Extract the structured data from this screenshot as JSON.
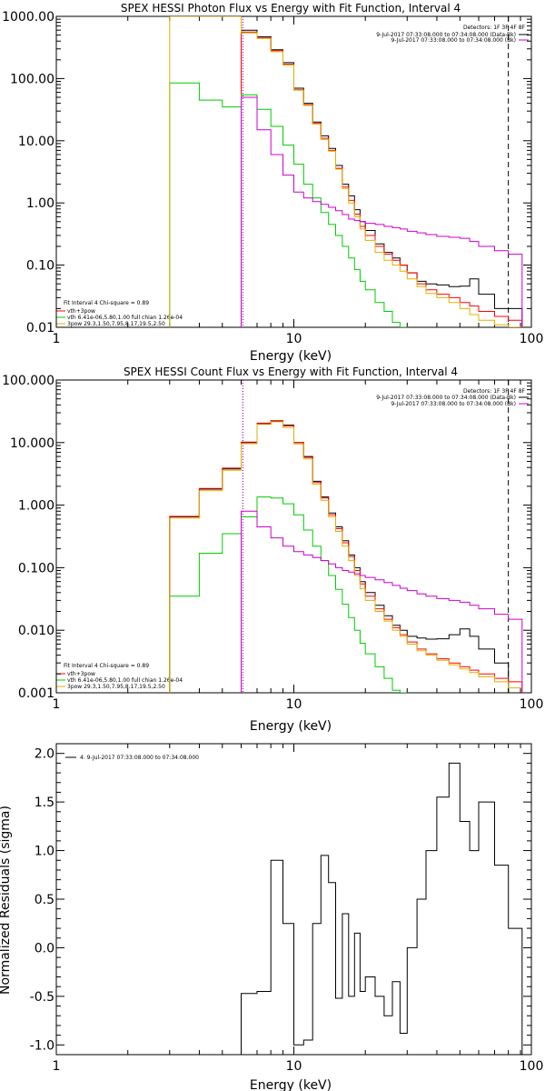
{
  "colors": {
    "data": "#000000",
    "background": "#ff0000",
    "total": "#ff8000",
    "vth": "#00cc00",
    "bpow": "#e0b000",
    "bk": "#cc00cc",
    "frame": "#000000"
  },
  "chart_data": [
    {
      "type": "line",
      "title": "SPEX HESSI Photon Flux vs Energy with Fit Function, Interval 4",
      "xlabel": "Energy (keV)",
      "ylabel": "",
      "xscale": "log",
      "yscale": "log",
      "xlim": [
        1,
        100
      ],
      "ylim": [
        0.01,
        1000
      ],
      "xticks": [
        {
          "v": 1,
          "label": "1"
        },
        {
          "v": 10,
          "label": "10"
        },
        {
          "v": 100,
          "label": "100"
        }
      ],
      "yticks": [
        {
          "v": 1000,
          "label": "1000.00"
        },
        {
          "v": 100,
          "label": "100.00"
        },
        {
          "v": 10,
          "label": "10.00"
        },
        {
          "v": 1,
          "label": "1.00"
        },
        {
          "v": 0.1,
          "label": "0.10"
        },
        {
          "v": 0.01,
          "label": "0.01"
        }
      ],
      "header": [
        "Detectors: 1F 3F 4F 8F",
        "9-Jul-2017 07:33:08.000 to 07:34:08.000 (Data-Bk)",
        "9-Jul-2017 07:33:08.000 to 07:34:08.000 (Bk)"
      ],
      "legend": [
        "Fit Interval  4   Chi-square = 0.89",
        "vth+3pow",
        "vth 6.41e-06,5.80,1.00  full chian 1.26e-04",
        "3pow 29.3,1.50,7.95,8.17,19.5,2.50"
      ],
      "vlines": [
        {
          "x": 6.1,
          "style": "dotted",
          "color": "#000000"
        },
        {
          "x": 6.1,
          "style": "dotted",
          "color": "#cc00cc"
        },
        {
          "x": 80,
          "style": "dashed",
          "color": "#000000"
        }
      ],
      "series": [
        {
          "name": "Data-Bk",
          "color": "#000000",
          "x": [
            6,
            7,
            8,
            9,
            10,
            11,
            12,
            13,
            14,
            15,
            16,
            17,
            18,
            19,
            20,
            22,
            24,
            26,
            28,
            30,
            33,
            36,
            40,
            45,
            50,
            55,
            60,
            70,
            80
          ],
          "y": [
            600,
            470,
            290,
            180,
            70,
            40,
            20,
            12,
            7.5,
            4,
            2,
            1.3,
            0.78,
            0.5,
            0.36,
            0.22,
            0.16,
            0.13,
            0.1,
            0.075,
            0.055,
            0.05,
            0.048,
            0.045,
            0.046,
            0.06,
            0.034,
            0.02,
            0.02
          ]
        },
        {
          "name": "vth+3pow",
          "color": "#ff0000",
          "x": [
            6,
            7,
            8,
            9,
            10,
            11,
            12,
            13,
            14,
            15,
            16,
            17,
            18,
            19,
            20,
            22,
            24,
            26,
            28,
            30,
            33,
            36,
            40,
            45,
            50,
            55,
            60,
            70,
            80
          ],
          "y": [
            560,
            450,
            280,
            170,
            66,
            38,
            19,
            11,
            7,
            3.6,
            1.8,
            1.1,
            0.66,
            0.42,
            0.3,
            0.2,
            0.15,
            0.12,
            0.1,
            0.075,
            0.05,
            0.04,
            0.034,
            0.03,
            0.025,
            0.022,
            0.018,
            0.015,
            0.013
          ]
        },
        {
          "name": "vth",
          "color": "#00cc00",
          "x": [
            3,
            4,
            5,
            6,
            7,
            8,
            9,
            10,
            11,
            12,
            13,
            14,
            15,
            16,
            17,
            18,
            19,
            20,
            22,
            24,
            26,
            28
          ],
          "y": [
            85,
            45,
            35,
            55,
            32,
            17,
            8.5,
            4.2,
            2,
            1.2,
            0.7,
            0.45,
            0.3,
            0.2,
            0.13,
            0.085,
            0.055,
            0.04,
            0.025,
            0.018,
            0.012,
            0.01
          ]
        },
        {
          "name": "3pow",
          "color": "#e0b000",
          "x": [
            3,
            4,
            5,
            6,
            7,
            8,
            9,
            10,
            11,
            12,
            13,
            14,
            15,
            16,
            17,
            18,
            19,
            20,
            22,
            24,
            26,
            28,
            30,
            33,
            36,
            40,
            45,
            50,
            55,
            60,
            70,
            80
          ],
          "y": [
            1000,
            1000,
            1000,
            540,
            440,
            270,
            165,
            65,
            37,
            18.5,
            10.5,
            6.8,
            3.5,
            1.7,
            1.0,
            0.6,
            0.38,
            0.25,
            0.16,
            0.12,
            0.1,
            0.08,
            0.06,
            0.045,
            0.035,
            0.03,
            0.025,
            0.02,
            0.016,
            0.013,
            0.011,
            0.01
          ]
        },
        {
          "name": "Bk",
          "color": "#cc00cc",
          "x": [
            6,
            7,
            8,
            9,
            10,
            11,
            12,
            13,
            14,
            15,
            16,
            17,
            18,
            19,
            20,
            22,
            24,
            26,
            28,
            30,
            33,
            36,
            40,
            45,
            50,
            55,
            60,
            70,
            80
          ],
          "y": [
            50,
            15,
            6,
            2.8,
            1.5,
            1.2,
            1.05,
            0.95,
            0.85,
            0.75,
            0.65,
            0.55,
            0.52,
            0.5,
            0.47,
            0.45,
            0.42,
            0.4,
            0.38,
            0.35,
            0.33,
            0.31,
            0.29,
            0.28,
            0.27,
            0.24,
            0.2,
            0.17,
            0.15
          ]
        }
      ]
    },
    {
      "type": "line",
      "title": "SPEX HESSI Count Flux vs Energy with Fit Function, Interval 4",
      "xlabel": "Energy (keV)",
      "ylabel": "",
      "xscale": "log",
      "yscale": "log",
      "xlim": [
        1,
        100
      ],
      "ylim": [
        0.001,
        100
      ],
      "xticks": [
        {
          "v": 1,
          "label": "1"
        },
        {
          "v": 10,
          "label": "10"
        },
        {
          "v": 100,
          "label": "100"
        }
      ],
      "yticks": [
        {
          "v": 100,
          "label": "100.000"
        },
        {
          "v": 10,
          "label": "10.000"
        },
        {
          "v": 1,
          "label": "1.000"
        },
        {
          "v": 0.1,
          "label": "0.100"
        },
        {
          "v": 0.01,
          "label": "0.010"
        },
        {
          "v": 0.001,
          "label": "0.001"
        }
      ],
      "header": [
        "Detectors: 1F 3F 4F 8F",
        "9-Jul-2017 07:33:08.000 to 07:34:08.000 (Data-Bk)",
        "9-Jul-2017 07:33:08.000 to 07:34:08.000 (Bk)"
      ],
      "legend": [
        "Fit Interval  4   Chi-square = 0.89",
        "vth+3pow",
        "vth 6.41e-06,5.80,1.00  full chian 1.26e-04",
        "3pow 29.3,1.50,7.95,8.17,19.5,2.50"
      ],
      "vlines": [
        {
          "x": 6.1,
          "style": "dotted",
          "color": "#000000"
        },
        {
          "x": 6.1,
          "style": "dotted",
          "color": "#cc00cc"
        },
        {
          "x": 80,
          "style": "dashed",
          "color": "#000000"
        }
      ],
      "series": [
        {
          "name": "Data-Bk",
          "color": "#000000",
          "x": [
            3,
            4,
            5,
            6,
            7,
            8,
            9,
            10,
            11,
            12,
            13,
            14,
            15,
            16,
            17,
            18,
            19,
            20,
            22,
            24,
            26,
            28,
            30,
            33,
            36,
            40,
            45,
            50,
            55,
            60,
            70,
            80
          ],
          "y": [
            0.65,
            1.8,
            3.8,
            10,
            20,
            22,
            19,
            10,
            6,
            2.4,
            1.35,
            0.75,
            0.45,
            0.27,
            0.16,
            0.1,
            0.06,
            0.04,
            0.025,
            0.017,
            0.012,
            0.01,
            0.008,
            0.0075,
            0.0072,
            0.0073,
            0.0085,
            0.0105,
            0.008,
            0.005,
            0.003,
            0.001
          ]
        },
        {
          "name": "vth+3pow",
          "color": "#ff0000",
          "x": [
            3,
            4,
            5,
            6,
            7,
            8,
            9,
            10,
            11,
            12,
            13,
            14,
            15,
            16,
            17,
            18,
            19,
            20,
            22,
            24,
            26,
            28,
            30,
            33,
            36,
            40,
            45,
            50,
            55,
            60,
            70,
            80
          ],
          "y": [
            0.66,
            1.85,
            3.9,
            10.2,
            20.5,
            22.5,
            18.5,
            10,
            5.8,
            2.3,
            1.3,
            0.7,
            0.42,
            0.25,
            0.15,
            0.09,
            0.055,
            0.035,
            0.022,
            0.015,
            0.011,
            0.0085,
            0.0065,
            0.005,
            0.0042,
            0.0035,
            0.003,
            0.0026,
            0.0023,
            0.002,
            0.0017,
            0.0015
          ]
        },
        {
          "name": "vth",
          "color": "#00cc00",
          "x": [
            3,
            4,
            5,
            6,
            7,
            8,
            9,
            10,
            11,
            12,
            13,
            14,
            15,
            16,
            17,
            18,
            19,
            20,
            22,
            24,
            26,
            28
          ],
          "y": [
            0.035,
            0.17,
            0.35,
            0.65,
            1.35,
            1.3,
            1.05,
            0.7,
            0.4,
            0.22,
            0.13,
            0.075,
            0.045,
            0.026,
            0.016,
            0.01,
            0.0062,
            0.0042,
            0.0026,
            0.0017,
            0.0011,
            0.001
          ]
        },
        {
          "name": "3pow",
          "color": "#e0b000",
          "x": [
            3,
            4,
            5,
            6,
            7,
            8,
            9,
            10,
            11,
            12,
            13,
            14,
            15,
            16,
            17,
            18,
            19,
            20,
            22,
            24,
            26,
            28,
            30,
            33,
            36,
            40,
            45,
            50,
            55,
            60,
            70,
            80
          ],
          "y": [
            0.62,
            1.7,
            3.6,
            9.6,
            19.5,
            21.5,
            17.5,
            9.5,
            5.5,
            2.15,
            1.2,
            0.65,
            0.38,
            0.22,
            0.13,
            0.075,
            0.046,
            0.03,
            0.02,
            0.014,
            0.01,
            0.008,
            0.006,
            0.0047,
            0.004,
            0.0033,
            0.0028,
            0.0024,
            0.0021,
            0.0018,
            0.0015,
            0.0012
          ]
        },
        {
          "name": "Bk",
          "color": "#cc00cc",
          "x": [
            6,
            7,
            8,
            9,
            10,
            11,
            12,
            13,
            14,
            15,
            16,
            17,
            18,
            19,
            20,
            22,
            24,
            26,
            28,
            30,
            33,
            36,
            40,
            45,
            50,
            55,
            60,
            70,
            80
          ],
          "y": [
            0.8,
            0.45,
            0.3,
            0.22,
            0.18,
            0.16,
            0.145,
            0.13,
            0.115,
            0.1,
            0.09,
            0.085,
            0.08,
            0.075,
            0.07,
            0.064,
            0.058,
            0.052,
            0.047,
            0.043,
            0.038,
            0.035,
            0.032,
            0.03,
            0.028,
            0.025,
            0.022,
            0.018,
            0.015
          ]
        }
      ]
    },
    {
      "type": "line",
      "title": "",
      "xlabel": "Energy (keV)",
      "ylabel": "Normalized Residuals (sigma)",
      "xscale": "log",
      "yscale": "linear",
      "xlim": [
        1,
        100
      ],
      "ylim": [
        -1.1,
        2.1
      ],
      "xticks": [
        {
          "v": 1,
          "label": "1"
        },
        {
          "v": 10,
          "label": "10"
        },
        {
          "v": 100,
          "label": "100"
        }
      ],
      "yticks": [
        {
          "v": 2.0,
          "label": "2.0"
        },
        {
          "v": 1.5,
          "label": "1.5"
        },
        {
          "v": 1.0,
          "label": "1.0"
        },
        {
          "v": 0.5,
          "label": "0.5"
        },
        {
          "v": 0.0,
          "label": "0.0"
        },
        {
          "v": -0.5,
          "label": "-0.5"
        },
        {
          "v": -1.0,
          "label": "-1.0"
        }
      ],
      "header": [],
      "legend": [
        "4.  9-Jul-2017 07:33:08.000 to 07:34:08.000"
      ],
      "vlines": [],
      "series": [
        {
          "name": "4.  9-Jul-2017 07:33:08.000 to 07:34:08.000",
          "color": "#000000",
          "x": [
            6,
            7,
            8,
            9,
            10,
            11,
            12,
            13,
            14,
            15,
            16,
            17,
            18,
            19,
            20,
            22,
            24,
            26,
            28,
            30,
            33,
            36,
            40,
            45,
            50,
            55,
            60,
            70,
            80
          ],
          "y": [
            -0.47,
            -0.45,
            0.9,
            0.25,
            -1.0,
            -0.95,
            0.25,
            0.95,
            0.67,
            -0.52,
            0.35,
            -0.5,
            0.15,
            -0.45,
            -0.3,
            -0.5,
            -0.7,
            -0.35,
            -0.88,
            0.0,
            0.5,
            1.0,
            1.55,
            1.9,
            1.3,
            1.0,
            1.5,
            0.85,
            0.2
          ]
        }
      ]
    }
  ]
}
